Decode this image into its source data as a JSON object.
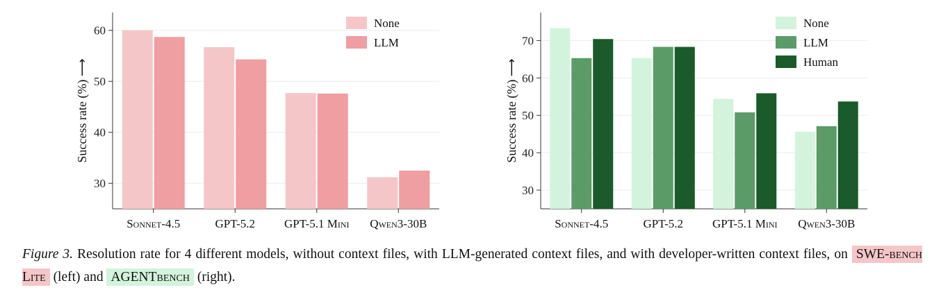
{
  "charts": [
    {
      "chart_data": {
        "type": "bar",
        "categories": [
          "Sonnet-4.5",
          "GPT-5.2",
          "GPT-5.1 Mini",
          "Qwen3-30B"
        ],
        "series": [
          {
            "name": "None",
            "values": [
              60.0,
              56.7,
              47.7,
              31.2
            ],
            "color": "#f5c6c8"
          },
          {
            "name": "LLM",
            "values": [
              58.7,
              54.3,
              47.6,
              32.5
            ],
            "color": "#ef9ea1"
          }
        ],
        "ylabel": "Success rate (%) ⟶",
        "yticks": [
          30,
          40,
          50,
          60
        ],
        "ylim": [
          25,
          63.5
        ],
        "grid": true,
        "legend": "top-right"
      }
    },
    {
      "chart_data": {
        "type": "bar",
        "categories": [
          "Sonnet-4.5",
          "GPT-5.2",
          "GPT-5.1 Mini",
          "Qwen3-30B"
        ],
        "series": [
          {
            "name": "None",
            "values": [
              73.3,
              65.3,
              54.4,
              45.6
            ],
            "color": "#d3f3dc"
          },
          {
            "name": "LLM",
            "values": [
              65.3,
              68.3,
              50.8,
              47.1
            ],
            "color": "#5b9b68"
          },
          {
            "name": "Human",
            "values": [
              70.4,
              68.3,
              55.9,
              53.7
            ],
            "color": "#1b5a2a"
          }
        ],
        "ylabel": "Success rate (%) ⟶",
        "yticks": [
          30,
          40,
          50,
          60,
          70
        ],
        "ylim": [
          25,
          77.5
        ],
        "grid": true,
        "legend": "top-right"
      }
    }
  ],
  "caption": {
    "label": "Figure 3.",
    "text1": "Resolution rate for 4 different models, without context files, with LLM-generated context files, and with developer-written context files, on",
    "highlight1": "SWE-bench Lite",
    "highlight1_color": "#f5c6c8",
    "text2": "(left) and",
    "highlight2": "AGENTbench",
    "highlight2_color": "#d3f3dc",
    "text3": "(right)."
  }
}
